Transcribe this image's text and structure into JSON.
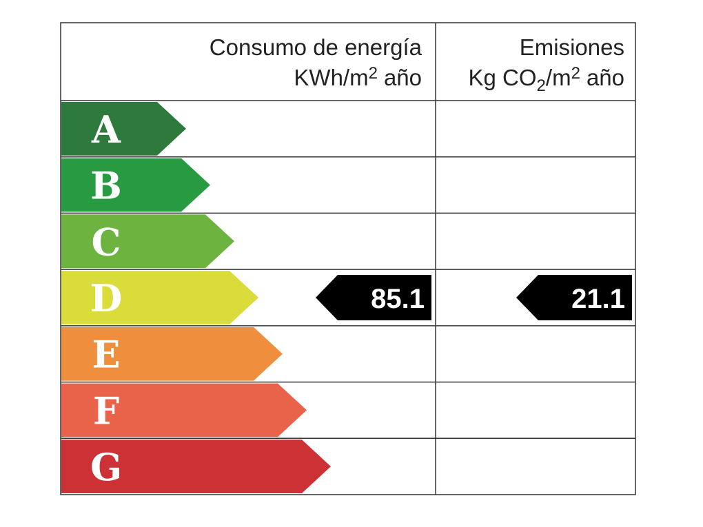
{
  "header": {
    "energy": {
      "title": "Consumo de energía",
      "unit_base": "KWh/m",
      "unit_exp": "2",
      "unit_tail": "año"
    },
    "emissions": {
      "title": "Emisiones",
      "unit_base": "Kg CO",
      "unit_sub": "2",
      "unit_mid": "/m",
      "unit_exp": "2",
      "unit_tail": "año"
    }
  },
  "rows": [
    {
      "letter": "A",
      "color": "#2e7a3c"
    },
    {
      "letter": "B",
      "color": "#279a42"
    },
    {
      "letter": "C",
      "color": "#6cb33f"
    },
    {
      "letter": "D",
      "color": "#d9dc3a",
      "energy": 85.1,
      "emissions": 21.1
    },
    {
      "letter": "E",
      "color": "#ef8f3e"
    },
    {
      "letter": "F",
      "color": "#e9634a"
    },
    {
      "letter": "G",
      "color": "#cc3136"
    }
  ]
}
